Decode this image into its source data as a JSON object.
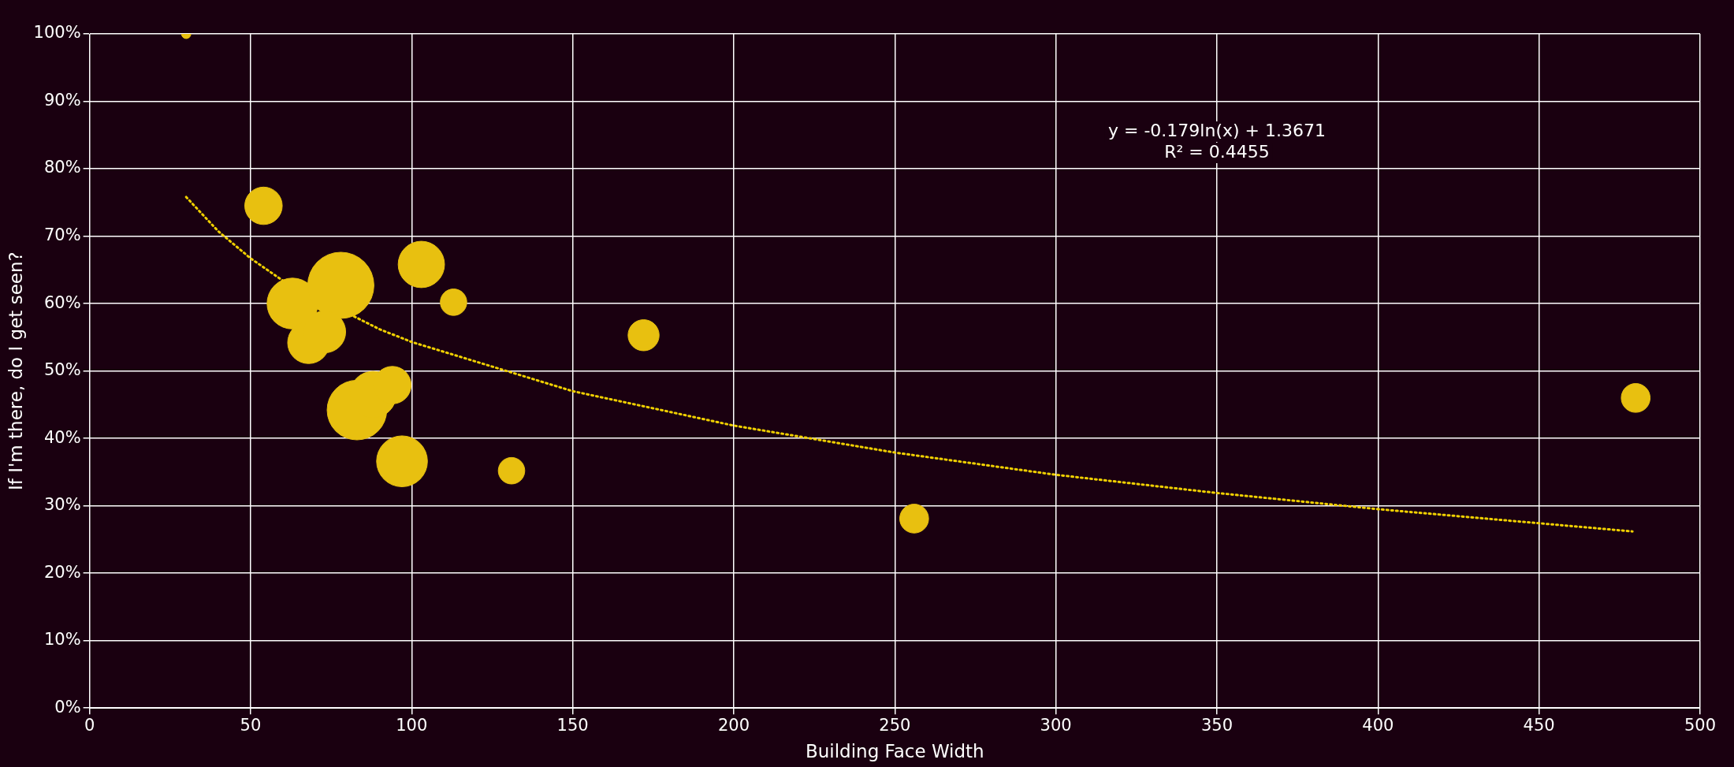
{
  "chart_data": {
    "type": "bubble",
    "xlabel": "Building Face Width",
    "ylabel": "If I'm there, do I get seen?",
    "xlim": [
      0,
      500
    ],
    "xticks": [
      0,
      50,
      100,
      150,
      200,
      250,
      300,
      350,
      400,
      450,
      500
    ],
    "ylim": [
      0,
      100
    ],
    "yticks": [
      {
        "value": 0,
        "label": "0%"
      },
      {
        "value": 10,
        "label": "10%"
      },
      {
        "value": 20,
        "label": "20%"
      },
      {
        "value": 30,
        "label": "30%"
      },
      {
        "value": 40,
        "label": "40%"
      },
      {
        "value": 50,
        "label": "50%"
      },
      {
        "value": 60,
        "label": "60%"
      },
      {
        "value": 70,
        "label": "70%"
      },
      {
        "value": 80,
        "label": "80%"
      },
      {
        "value": 90,
        "label": "90%"
      },
      {
        "value": 100,
        "label": "100%"
      }
    ],
    "grid": true,
    "legend": false,
    "marker": "circle",
    "series": [
      {
        "color": "#e8c010",
        "x": [
          30,
          54,
          63,
          78,
          68,
          73,
          103,
          113,
          172,
          83,
          88,
          94,
          97,
          131,
          256,
          480
        ],
        "values": [
          100,
          74.5,
          60,
          62.7,
          54.2,
          55.8,
          65.8,
          60.2,
          55.3,
          44.2,
          46.5,
          47.9,
          36.6,
          35.2,
          28.1,
          46
        ],
        "sizes": [
          0.02,
          0.32,
          0.59,
          1,
          0.4,
          0.4,
          0.49,
          0.16,
          0.22,
          0.81,
          0.49,
          0.32,
          0.59,
          0.16,
          0.19,
          0.19
        ]
      },
      {
        "type": "line",
        "color": "#f0d000",
        "line_style": "dotted",
        "marker": "none",
        "x": [
          30,
          40,
          50,
          60,
          90,
          100,
          150,
          200,
          250,
          300,
          350,
          400,
          479
        ],
        "values": [
          75.8,
          70.7,
          66.7,
          63.4,
          56.2,
          54.3,
          47.0,
          41.9,
          37.9,
          34.6,
          31.9,
          29.5,
          26.2
        ]
      }
    ],
    "annotations": [
      "y = -0.179ln(x) + 1.3671",
      "R² = 0.4455"
    ]
  }
}
